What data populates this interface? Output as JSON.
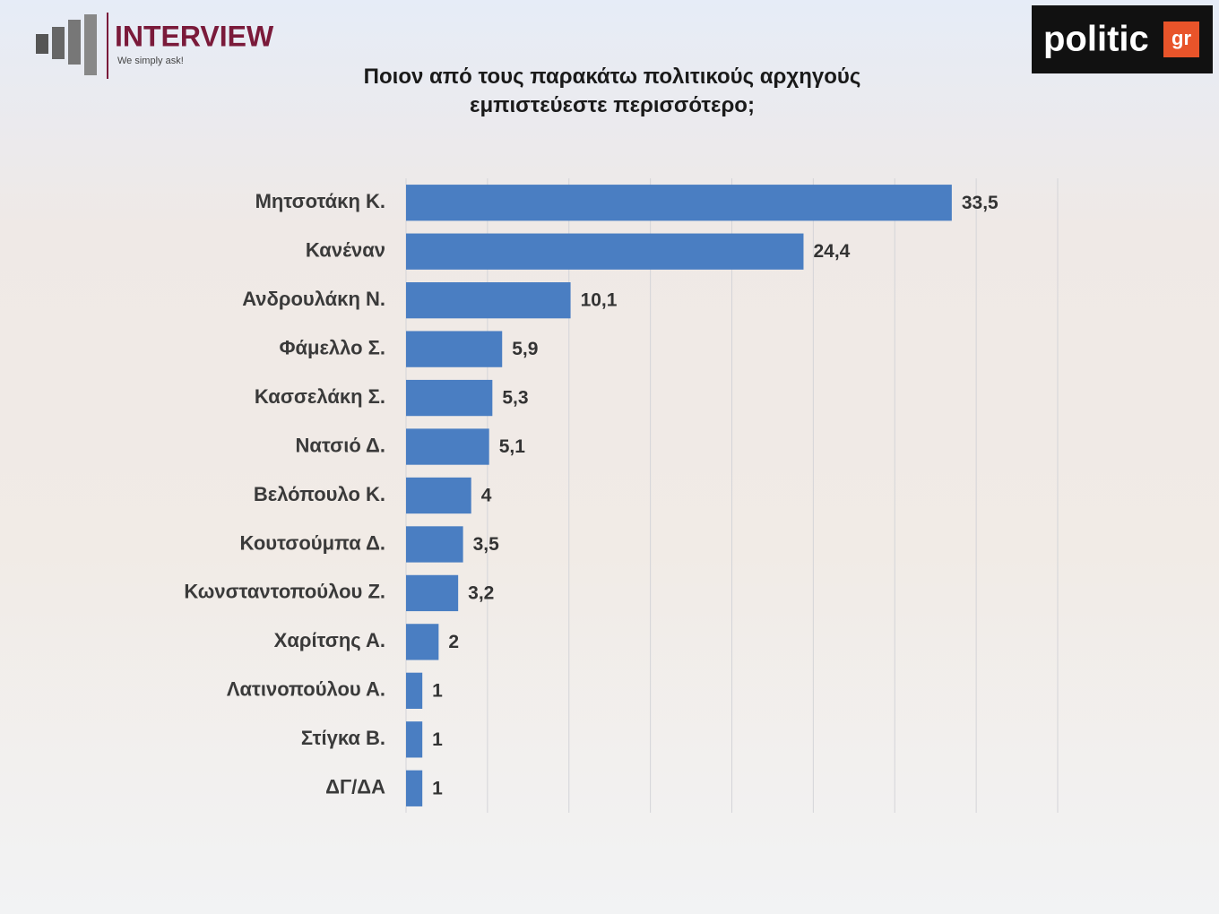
{
  "brand": {
    "name": "INTERVIEW",
    "tagline": "We simply ask!"
  },
  "source": {
    "name": "politic",
    "suffix": "gr"
  },
  "chart_data": {
    "type": "bar",
    "orientation": "horizontal",
    "title": "Ποιον από τους παρακάτω πολιτικούς αρχηγούς εμπιστεύεστε περισσότερο;",
    "categories": [
      "Μητσοτάκη Κ.",
      "Κανέναν",
      "Ανδρουλάκη Ν.",
      "Φάμελλο Σ.",
      "Κασσελάκη Σ.",
      "Νατσιό Δ.",
      "Βελόπουλο Κ.",
      "Κουτσούμπα Δ.",
      "Κωνσταντοπούλου Ζ.",
      "Χαρίτσης Α.",
      "Λατινοπούλου Α.",
      "Στίγκα Β.",
      "ΔΓ/ΔΑ"
    ],
    "values": [
      33.5,
      24.4,
      10.1,
      5.9,
      5.3,
      5.1,
      4,
      3.5,
      3.2,
      2,
      1,
      1,
      1
    ],
    "value_labels": [
      "33,5",
      "24,4",
      "10,1",
      "5,9",
      "5,3",
      "5,1",
      "4",
      "3,5",
      "3,2",
      "2",
      "1",
      "1",
      "1"
    ],
    "color": "#4a7ec2",
    "xlim": [
      0,
      40
    ],
    "xticks": [
      0,
      5,
      10,
      15,
      20,
      25,
      30,
      35,
      40
    ],
    "grid": true
  }
}
